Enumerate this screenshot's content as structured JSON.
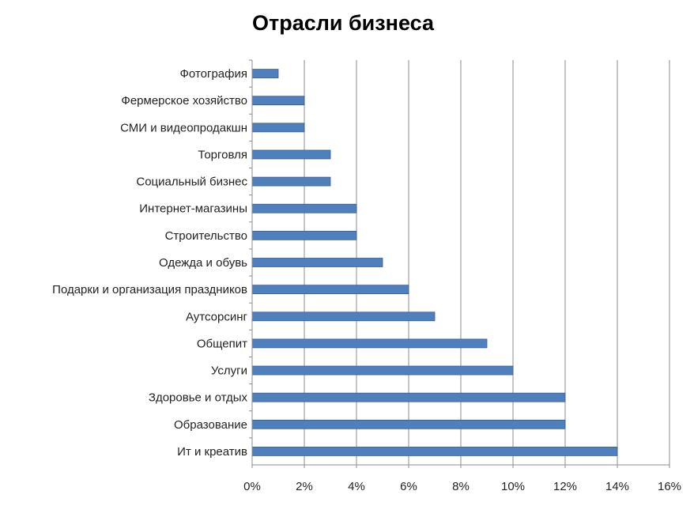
{
  "chart_data": {
    "type": "bar",
    "orientation": "horizontal",
    "title": "Отрасли бизнеса",
    "xlabel": "",
    "ylabel": "",
    "categories": [
      "Фотография",
      "Фермерское хозяйство",
      "СМИ и видеопродакшн",
      "Торговля",
      "Социальный бизнес",
      "Интернет-магазины",
      "Строительство",
      "Одежда и обувь",
      "Подарки и организация праздников",
      "Аутсорсинг",
      "Общепит",
      "Услуги",
      "Здоровье и отдых",
      "Образование",
      "Ит и креатив"
    ],
    "values": [
      1,
      2,
      2,
      3,
      3,
      4,
      4,
      5,
      6,
      7,
      9,
      10,
      12,
      12,
      14
    ],
    "xlim": [
      0,
      16
    ],
    "xticks": [
      "0%",
      "2%",
      "4%",
      "6%",
      "8%",
      "10%",
      "12%",
      "14%",
      "16%"
    ],
    "grid": true,
    "legend": "none",
    "bar_color": "#4f7fbd"
  }
}
